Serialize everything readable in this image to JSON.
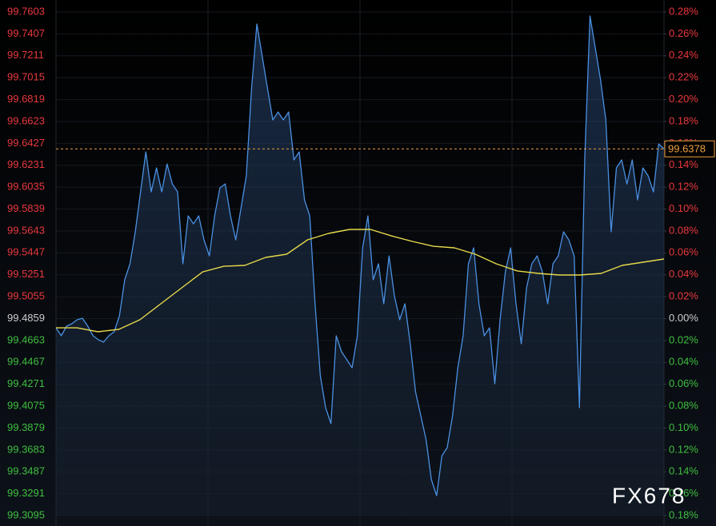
{
  "chart_data": {
    "type": "line",
    "watermark": "FX678",
    "ylim": [
      99.3095,
      99.7603
    ],
    "yticks": [
      99.7603,
      99.7407,
      99.7211,
      99.7015,
      99.6819,
      99.6623,
      99.6427,
      99.6231,
      99.6035,
      99.5839,
      99.5643,
      99.5447,
      99.5251,
      99.5055,
      99.4859,
      99.4663,
      99.4467,
      99.4271,
      99.4075,
      99.3879,
      99.3683,
      99.3487,
      99.3291,
      99.3095
    ],
    "y2lim": [
      -0.1773,
      0.2758
    ],
    "y2ticks": [
      {
        "value": 0.2758,
        "label": "0.28%"
      },
      {
        "value": 0.2561,
        "label": "0.26%"
      },
      {
        "value": 0.2364,
        "label": "0.24%"
      },
      {
        "value": 0.2167,
        "label": "0.22%"
      },
      {
        "value": 0.197,
        "label": "0.20%"
      },
      {
        "value": 0.1773,
        "label": "0.18%"
      },
      {
        "value": 0.1576,
        "label": "0.16%"
      },
      {
        "value": 0.1379,
        "label": "0.14%"
      },
      {
        "value": 0.1182,
        "label": "0.12%"
      },
      {
        "value": 0.0985,
        "label": "0.10%"
      },
      {
        "value": 0.0788,
        "label": "0.08%"
      },
      {
        "value": 0.0591,
        "label": "0.06%"
      },
      {
        "value": 0.0394,
        "label": "0.04%"
      },
      {
        "value": 0.0197,
        "label": "0.02%"
      },
      {
        "value": 0,
        "label": "0.00%"
      },
      {
        "value": -0.0197,
        "label": "0.02%"
      },
      {
        "value": -0.0394,
        "label": "0.04%"
      },
      {
        "value": -0.0591,
        "label": "0.06%"
      },
      {
        "value": -0.0788,
        "label": "0.08%"
      },
      {
        "value": -0.0985,
        "label": "0.10%"
      },
      {
        "value": -0.1182,
        "label": "0.12%"
      },
      {
        "value": -0.1379,
        "label": "0.14%"
      },
      {
        "value": -0.1576,
        "label": "0.16%"
      },
      {
        "value": -0.1773,
        "label": "0.18%"
      }
    ],
    "current_price": 99.6378,
    "up_color": "#e8383d",
    "down_color": "#3fbf3f",
    "flat_color": "#cccccc",
    "series": [
      {
        "color": "#4a90e2",
        "area": true,
        "values": [
          99.4776,
          99.4705,
          99.4791,
          99.4812,
          99.4848,
          99.4862,
          99.4791,
          99.4705,
          99.4669,
          99.4648,
          99.4705,
          99.4741,
          99.4884,
          99.5206,
          99.5349,
          99.5635,
          99.5993,
          99.6351,
          99.5993,
          99.6208,
          99.5993,
          99.6243,
          99.6064,
          99.5993,
          99.5349,
          99.5778,
          99.5707,
          99.5778,
          99.5564,
          99.542,
          99.5778,
          99.6029,
          99.6064,
          99.5778,
          99.5564,
          99.585,
          99.6136,
          99.6923,
          99.7496,
          99.7209,
          99.6923,
          99.6637,
          99.6708,
          99.6637,
          99.6708,
          99.6279,
          99.6351,
          99.5921,
          99.5778,
          99.4991,
          99.4347,
          99.4061,
          99.3918,
          99.4705,
          99.4562,
          99.449,
          99.4419,
          99.4705,
          99.5492,
          99.5778,
          99.5206,
          99.5349,
          99.4991,
          99.542,
          99.5063,
          99.4848,
          99.4991,
          99.4633,
          99.4204,
          99.3989,
          99.3775,
          99.3417,
          99.3274,
          99.3631,
          99.3703,
          99.3989,
          99.4419,
          99.4705,
          99.5349,
          99.5492,
          99.4991,
          99.4705,
          99.4776,
          99.4275,
          99.4848,
          99.5277,
          99.5492,
          99.4991,
          99.4633,
          99.5134,
          99.5349,
          99.542,
          99.5277,
          99.4991,
          99.5349,
          99.542,
          99.5635,
          99.5564,
          99.542,
          99.4061,
          99.6279,
          99.7567,
          99.7281,
          99.6995,
          99.6637,
          99.5635,
          99.6208,
          99.6279,
          99.6064,
          99.6279,
          99.5921,
          99.6208,
          99.6136,
          99.5993,
          99.6422,
          99.6378
        ]
      },
      {
        "color": "#e6d84a",
        "area": false,
        "values": [
          99.4776,
          99.4776,
          99.4741,
          99.4762,
          99.4848,
          99.4991,
          99.5134,
          99.5277,
          99.5327,
          99.5335,
          99.5406,
          99.5435,
          99.5564,
          99.5621,
          99.5657,
          99.5657,
          99.5599,
          99.5549,
          99.5506,
          99.5492,
          99.5435,
          99.5349,
          99.5285,
          99.5263,
          99.5249,
          99.5249,
          99.5263,
          99.5335,
          99.5363,
          99.5392
        ]
      }
    ]
  }
}
